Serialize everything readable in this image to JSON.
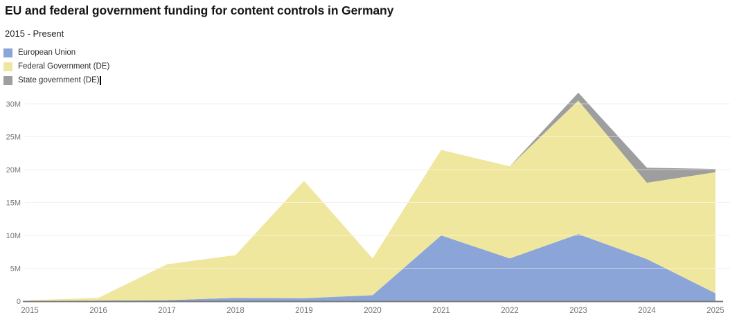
{
  "header": {
    "title": "EU and federal government funding for content controls in Germany",
    "subtitle": "2015 - Present"
  },
  "legend": {
    "items": [
      {
        "label": "European Union",
        "color": "#8ca5d8"
      },
      {
        "label": "Federal Government (DE)",
        "color": "#f0e79f"
      },
      {
        "label": "State government (DE)",
        "color": "#9e9e9e"
      }
    ]
  },
  "chart_data": {
    "type": "area",
    "stacked": true,
    "title": "EU and federal government funding for content controls in Germany",
    "subtitle": "2015 - Present",
    "x": [
      "2015",
      "2016",
      "2017",
      "2018",
      "2019",
      "2020",
      "2021",
      "2022",
      "2023",
      "2024",
      "2025"
    ],
    "unit": "M",
    "series": [
      {
        "name": "European Union",
        "color": "#8ca5d8",
        "values": [
          0.03,
          0.1,
          0.15,
          0.5,
          0.45,
          0.9,
          10.0,
          6.5,
          10.2,
          6.4,
          1.2
        ]
      },
      {
        "name": "Federal Government (DE)",
        "color": "#f0e79f",
        "values": [
          0.12,
          0.4,
          5.45,
          6.5,
          17.85,
          5.6,
          13.0,
          14.0,
          20.3,
          11.6,
          18.4
        ]
      },
      {
        "name": "State government (DE)",
        "color": "#9e9e9e",
        "values": [
          0,
          0,
          0,
          0,
          0,
          0,
          0,
          0,
          1.2,
          2.3,
          0.5
        ]
      }
    ],
    "yticks": [
      {
        "value": 0,
        "label": "0"
      },
      {
        "value": 5,
        "label": "5M"
      },
      {
        "value": 10,
        "label": "10M"
      },
      {
        "value": 15,
        "label": "15M"
      },
      {
        "value": 20,
        "label": "20M"
      },
      {
        "value": 25,
        "label": "25M"
      },
      {
        "value": 30,
        "label": "30M"
      }
    ],
    "ylim": [
      0,
      31.7
    ],
    "grid": true,
    "legend_position": "top-left",
    "colors": {
      "gridline": "#e7e7e7",
      "axis_line": "#7d7d7d",
      "tick_label": "#757575",
      "background": "#ffffff"
    }
  }
}
